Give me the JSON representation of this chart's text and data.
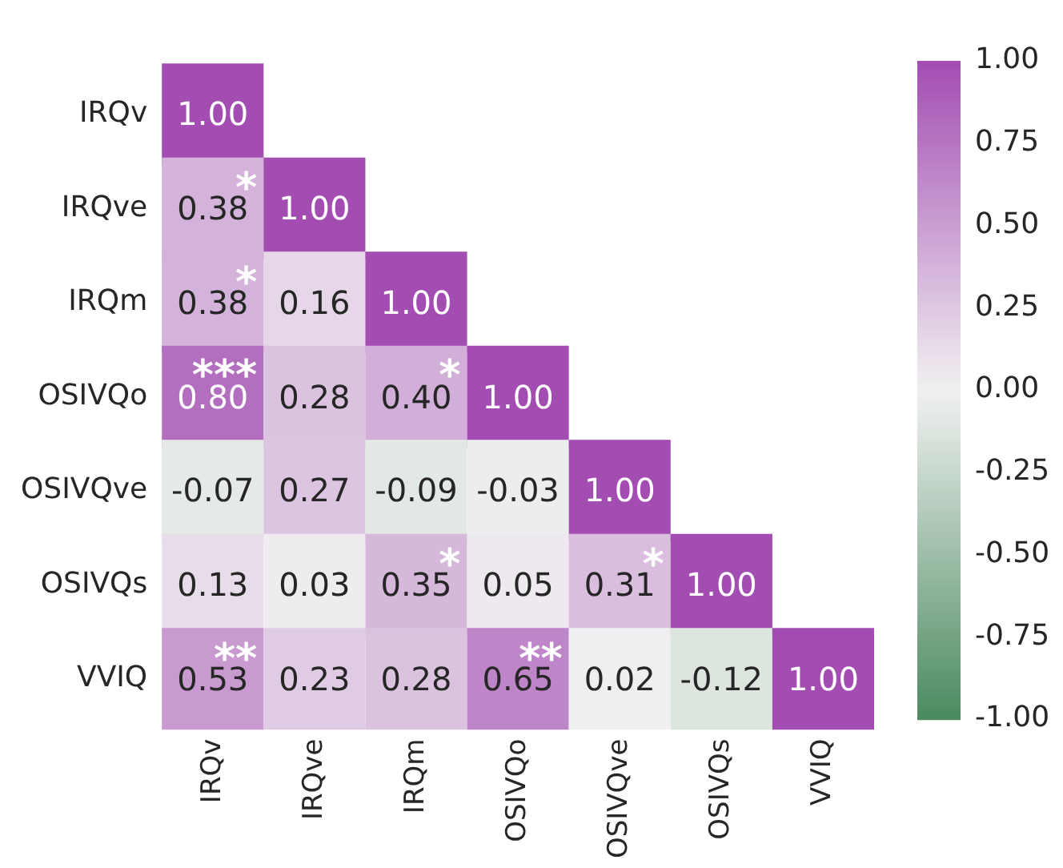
{
  "chart_data": {
    "type": "heatmap",
    "categories": [
      "IRQv",
      "IRQve",
      "IRQm",
      "OSIVQo",
      "OSIVQve",
      "OSIVQs",
      "VVIQ"
    ],
    "y_categories": [
      "IRQv",
      "IRQve",
      "IRQm",
      "OSIVQo",
      "OSIVQve",
      "OSIVQs",
      "VVIQ"
    ],
    "cells": [
      [
        1.0,
        null,
        null,
        null,
        null,
        null,
        null
      ],
      [
        0.38,
        1.0,
        null,
        null,
        null,
        null,
        null
      ],
      [
        0.38,
        0.16,
        1.0,
        null,
        null,
        null,
        null
      ],
      [
        0.8,
        0.28,
        0.4,
        1.0,
        null,
        null,
        null
      ],
      [
        -0.07,
        0.27,
        -0.09,
        -0.03,
        1.0,
        null,
        null
      ],
      [
        0.13,
        0.03,
        0.35,
        0.05,
        0.31,
        1.0,
        null
      ],
      [
        0.53,
        0.23,
        0.28,
        0.65,
        0.02,
        -0.12,
        1.0
      ]
    ],
    "cell_labels": [
      [
        "1.00",
        null,
        null,
        null,
        null,
        null,
        null
      ],
      [
        "0.38$^{*}$",
        "1.00",
        null,
        null,
        null,
        null,
        null
      ],
      [
        "0.38$^{*}$",
        "0.16",
        "1.00",
        null,
        null,
        null,
        null
      ],
      [
        "0.80$^{***}$",
        "0.28",
        "0.40$^{*}$",
        "1.00",
        null,
        null,
        null
      ],
      [
        "-0.07",
        "0.27",
        "-0.09",
        "-0.03",
        "1.00",
        null,
        null
      ],
      [
        "0.13",
        "0.03",
        "0.35$^{*}$",
        "0.05",
        "0.31$^{*}$",
        "1.00",
        null
      ],
      [
        "0.53$^{**}$",
        "0.23",
        "0.28",
        "0.65$^{**}$",
        "0.02",
        "-0.12",
        "1.00"
      ]
    ],
    "clim": [
      -1,
      1
    ],
    "cticks": [
      {
        "value": -1,
        "label": "-1.00"
      },
      {
        "value": -0.75,
        "label": "-0.75"
      },
      {
        "value": -0.5,
        "label": "-0.50"
      },
      {
        "value": -0.25,
        "label": "-0.25"
      },
      {
        "value": 0,
        "label": "0.00"
      },
      {
        "value": 0.25,
        "label": "0.25"
      },
      {
        "value": 0.5,
        "label": "0.50"
      },
      {
        "value": 0.75,
        "label": "0.75"
      },
      {
        "value": 1,
        "label": "1.00"
      }
    ],
    "legend": false,
    "grid": false
  }
}
